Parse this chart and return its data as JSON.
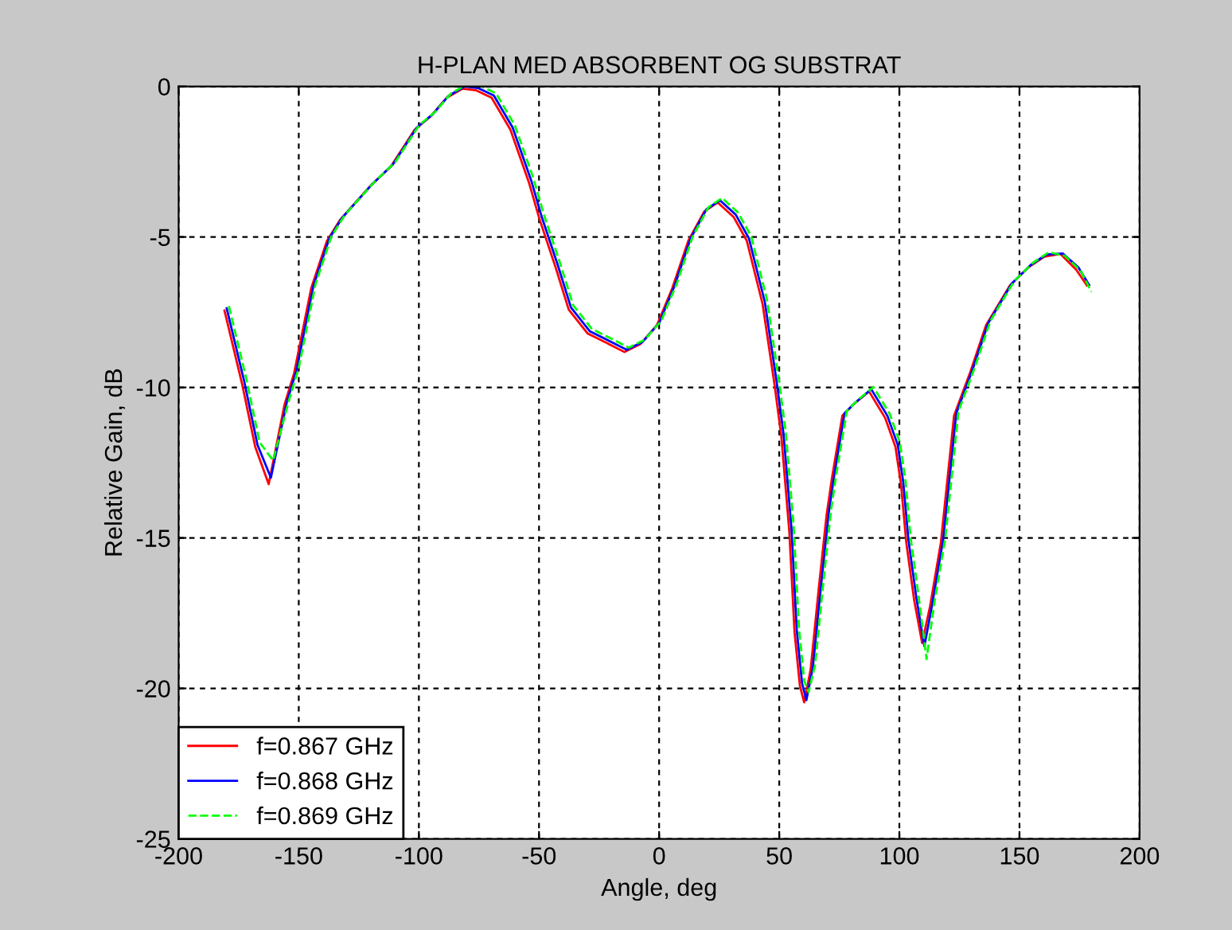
{
  "chart_data": {
    "type": "line",
    "title": "H-PLAN MED ABSORBENT OG SUBSTRAT",
    "xlabel": "Angle, deg",
    "ylabel": "Relative Gain, dB",
    "x": [
      -180,
      -172.7,
      -167.2,
      -161.6,
      -155,
      -151,
      -143.9,
      -137.3,
      -131.8,
      -119.6,
      -110.8,
      -100.8,
      -94.2,
      -87.5,
      -80.9,
      -75.4,
      -68.8,
      -61,
      -53.3,
      -48.8,
      -42.2,
      -36.7,
      -28.9,
      -20.1,
      -13.5,
      -6.8,
      0,
      6.4,
      13.1,
      19.7,
      25.3,
      31.9,
      37.4,
      44,
      48.9,
      51.8,
      55.1,
      57.3,
      59.5,
      61.3,
      64,
      67.3,
      70.6,
      72.8,
      77.2,
      81.7,
      88.3,
      95,
      99.3,
      101.6,
      103.8,
      107.1,
      110.4,
      113.7,
      118.2,
      123.7,
      130.3,
      137,
      146.9,
      154.7,
      161.3,
      168,
      174.6,
      179
    ],
    "series": [
      {
        "name": "f=0.867 GHz",
        "color": "#ff0000",
        "line_style": "solid",
        "values": [
          -7.37,
          -9.8,
          -11.9,
          -13.14,
          -10.5,
          -9.45,
          -6.63,
          -5.05,
          -4.35,
          -3.26,
          -2.59,
          -1.36,
          -0.92,
          -0.3,
          0,
          -0.05,
          -0.3,
          -1.36,
          -3.11,
          -4.35,
          -5.93,
          -7.34,
          -8.13,
          -8.48,
          -8.75,
          -8.48,
          -7.86,
          -6.63,
          -5.05,
          -4.08,
          -3.78,
          -4.26,
          -5.05,
          -7.16,
          -9.8,
          -11.56,
          -14.7,
          -18.07,
          -19.83,
          -20.39,
          -19.3,
          -16.66,
          -14.18,
          -12.97,
          -10.86,
          -10.5,
          -10.06,
          -10.94,
          -11.9,
          -13.14,
          -15.08,
          -17.0,
          -18.42,
          -17.2,
          -15.08,
          -10.86,
          -9.45,
          -7.86,
          -6.54,
          -5.93,
          -5.58,
          -5.49,
          -6.02,
          -6.54
        ]
      },
      {
        "name": "f=0.868 GHz",
        "color": "#0000ff",
        "line_style": "solid",
        "values": [
          -7.37,
          -9.8,
          -11.9,
          -13.0,
          -10.5,
          -9.45,
          -6.63,
          -5.05,
          -4.35,
          -3.26,
          -2.59,
          -1.36,
          -0.92,
          -0.3,
          0,
          -0.05,
          -0.3,
          -1.36,
          -3.11,
          -4.35,
          -5.93,
          -7.34,
          -8.13,
          -8.48,
          -8.75,
          -8.48,
          -7.86,
          -6.63,
          -5.05,
          -4.08,
          -3.78,
          -4.26,
          -5.05,
          -7.16,
          -9.8,
          -11.56,
          -14.7,
          -18.07,
          -19.83,
          -20.39,
          -19.3,
          -16.66,
          -14.18,
          -12.97,
          -10.86,
          -10.5,
          -10.06,
          -10.94,
          -11.9,
          -13.14,
          -15.08,
          -17.0,
          -18.6,
          -17.2,
          -15.08,
          -10.86,
          -9.45,
          -7.86,
          -6.54,
          -5.93,
          -5.58,
          -5.55,
          -6.02,
          -6.6
        ]
      },
      {
        "name": "f=0.869 GHz",
        "color": "#00ff00",
        "line_style": "dashed",
        "values": [
          -7.37,
          -9.8,
          -11.9,
          -12.5,
          -10.5,
          -9.45,
          -6.63,
          -5.05,
          -4.35,
          -3.26,
          -2.59,
          -1.36,
          -0.92,
          -0.3,
          0,
          -0.05,
          -0.3,
          -1.36,
          -3.11,
          -4.35,
          -5.93,
          -7.34,
          -8.13,
          -8.48,
          -8.75,
          -8.48,
          -7.86,
          -6.63,
          -5.05,
          -4.08,
          -3.78,
          -4.26,
          -5.05,
          -7.16,
          -9.8,
          -11.56,
          -14.7,
          -18.07,
          -19.83,
          -20.2,
          -19.3,
          -16.66,
          -14.18,
          -12.97,
          -10.86,
          -10.5,
          -10.06,
          -10.94,
          -11.9,
          -13.14,
          -15.08,
          -17.0,
          -19.1,
          -17.2,
          -15.08,
          -10.86,
          -9.45,
          -7.86,
          -6.54,
          -5.93,
          -5.58,
          -5.7,
          -6.2,
          -6.9
        ]
      }
    ],
    "xlim": [
      -200,
      200
    ],
    "xticks": [
      -200,
      -150,
      -100,
      -50,
      0,
      50,
      100,
      150,
      200
    ],
    "ylim": [
      -25,
      0
    ],
    "yticks": [
      -25,
      -20,
      -15,
      -10,
      -5,
      0
    ],
    "grid": true,
    "legend": "bottom left"
  }
}
